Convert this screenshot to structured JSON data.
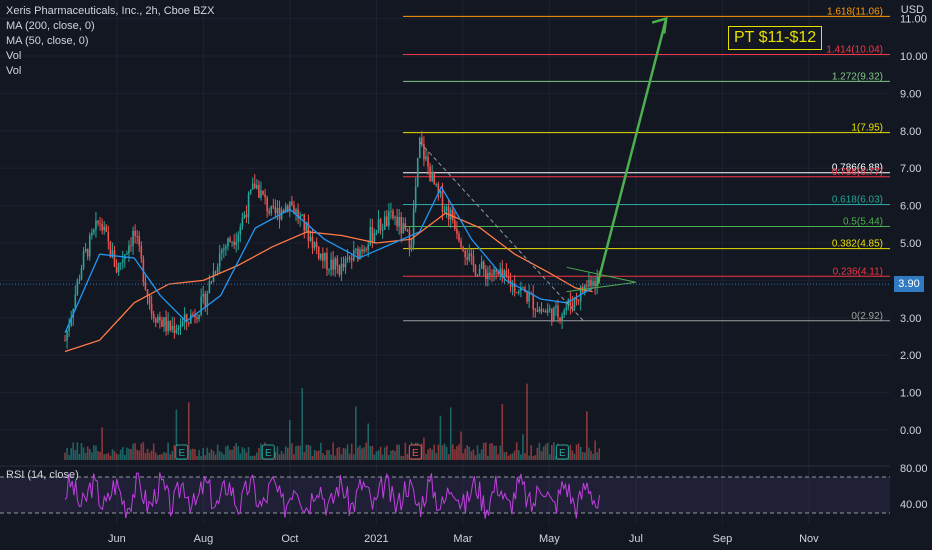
{
  "header": {
    "title": "Xeris Pharmaceuticals, Inc., 2h, Cboe BZX",
    "ma200": "MA (200, close, 0)",
    "ma50": "MA (50, close, 0)",
    "vol1": "Vol",
    "vol2": "Vol",
    "rsi": "RSI (14, close)",
    "currency": "USD"
  },
  "annotation": {
    "target_label": "PT $11-$12"
  },
  "current_price": "3.90",
  "colors": {
    "background": "#131722",
    "candle_up": "#26a69a",
    "candle_down": "#ef5350",
    "ma50": "#2196f3",
    "ma200": "#ff7a45",
    "arrow": "#4caf50",
    "rsi": "#c040e0"
  },
  "chart_data": {
    "type": "candlestick",
    "price_axis": {
      "ticks": [
        {
          "value": 11,
          "label": "11.00"
        },
        {
          "value": 10,
          "label": "10.00"
        },
        {
          "value": 9,
          "label": "9.00"
        },
        {
          "value": 8,
          "label": "8.00"
        },
        {
          "value": 7,
          "label": "7.00"
        },
        {
          "value": 6,
          "label": "6.00"
        },
        {
          "value": 5,
          "label": "5.00"
        },
        {
          "value": 4,
          "label": "4.00"
        },
        {
          "value": 3,
          "label": "3.00"
        },
        {
          "value": 2,
          "label": "2.00"
        },
        {
          "value": 1,
          "label": "1.00"
        },
        {
          "value": 0,
          "label": "0.00"
        }
      ]
    },
    "rsi_axis": {
      "ticks": [
        {
          "value": 80,
          "label": "80.00"
        },
        {
          "value": 40,
          "label": "40.00"
        }
      ]
    },
    "time_axis": {
      "labels": [
        {
          "t": 0.6,
          "label": "Jun"
        },
        {
          "t": 1.6,
          "label": "Aug"
        },
        {
          "t": 2.6,
          "label": "Oct"
        },
        {
          "t": 3.6,
          "label": "2021"
        },
        {
          "t": 4.6,
          "label": "Mar"
        },
        {
          "t": 5.6,
          "label": "May"
        },
        {
          "t": 6.6,
          "label": "Jul"
        },
        {
          "t": 7.6,
          "label": "Sep"
        },
        {
          "t": 8.6,
          "label": "Nov"
        }
      ]
    },
    "fib_levels": [
      {
        "ratio": "1.618",
        "value": 11.06,
        "label": "1.618(11.06)",
        "color": "#ff9800"
      },
      {
        "ratio": "1.414",
        "value": 10.04,
        "label": "1.414(10.04)",
        "color": "#f23645"
      },
      {
        "ratio": "1.272",
        "value": 9.32,
        "label": "1.272(9.32)",
        "color": "#81c784"
      },
      {
        "ratio": "1",
        "value": 7.95,
        "label": "1(7.95)",
        "color": "#e8e000"
      },
      {
        "ratio": "0.786",
        "value": 6.88,
        "label": "0.786(6.88)",
        "color": "#ffffff"
      },
      {
        "ratio": "0.786",
        "value": 6.77,
        "label": "0.786(6.77)",
        "color": "#f23645"
      },
      {
        "ratio": "0.618",
        "value": 6.03,
        "label": "0.618(6.03)",
        "color": "#26a69a"
      },
      {
        "ratio": "0.5",
        "value": 5.44,
        "label": "0.5(5.44)",
        "color": "#4caf50"
      },
      {
        "ratio": "0.382",
        "value": 4.85,
        "label": "0.382(4.85)",
        "color": "#e8e000"
      },
      {
        "ratio": "0.236",
        "value": 4.11,
        "label": "0.236(4.11)",
        "color": "#f23645"
      },
      {
        "ratio": "0",
        "value": 2.92,
        "label": "0(2.92)",
        "color": "#9e9e9e"
      }
    ],
    "price_path_sketch": [
      {
        "t": 0.0,
        "v": 2.4
      },
      {
        "t": 0.2,
        "v": 4.5
      },
      {
        "t": 0.4,
        "v": 5.6
      },
      {
        "t": 0.6,
        "v": 4.3
      },
      {
        "t": 0.8,
        "v": 5.3
      },
      {
        "t": 1.0,
        "v": 3.2
      },
      {
        "t": 1.2,
        "v": 2.7
      },
      {
        "t": 1.4,
        "v": 2.9
      },
      {
        "t": 1.6,
        "v": 3.4
      },
      {
        "t": 1.8,
        "v": 4.8
      },
      {
        "t": 2.0,
        "v": 5.3
      },
      {
        "t": 2.2,
        "v": 6.6
      },
      {
        "t": 2.4,
        "v": 5.7
      },
      {
        "t": 2.6,
        "v": 6.1
      },
      {
        "t": 2.8,
        "v": 5.3
      },
      {
        "t": 3.0,
        "v": 4.5
      },
      {
        "t": 3.2,
        "v": 4.3
      },
      {
        "t": 3.4,
        "v": 4.8
      },
      {
        "t": 3.6,
        "v": 5.4
      },
      {
        "t": 3.8,
        "v": 5.7
      },
      {
        "t": 4.0,
        "v": 5.0
      },
      {
        "t": 4.1,
        "v": 7.7
      },
      {
        "t": 4.3,
        "v": 6.3
      },
      {
        "t": 4.5,
        "v": 5.6
      },
      {
        "t": 4.7,
        "v": 4.4
      },
      {
        "t": 4.9,
        "v": 4.2
      },
      {
        "t": 5.1,
        "v": 4.0
      },
      {
        "t": 5.3,
        "v": 3.7
      },
      {
        "t": 5.5,
        "v": 3.2
      },
      {
        "t": 5.7,
        "v": 3.1
      },
      {
        "t": 5.9,
        "v": 3.5
      },
      {
        "t": 6.1,
        "v": 4.1
      },
      {
        "t": 6.2,
        "v": 3.9
      }
    ],
    "ma50": [
      {
        "t": 0.0,
        "v": 2.6
      },
      {
        "t": 0.4,
        "v": 4.7
      },
      {
        "t": 0.8,
        "v": 4.6
      },
      {
        "t": 1.1,
        "v": 3.6
      },
      {
        "t": 1.4,
        "v": 2.9
      },
      {
        "t": 1.8,
        "v": 3.6
      },
      {
        "t": 2.2,
        "v": 5.4
      },
      {
        "t": 2.6,
        "v": 5.9
      },
      {
        "t": 3.0,
        "v": 5.1
      },
      {
        "t": 3.4,
        "v": 4.6
      },
      {
        "t": 3.8,
        "v": 5.0
      },
      {
        "t": 4.1,
        "v": 5.3
      },
      {
        "t": 4.35,
        "v": 6.5
      },
      {
        "t": 4.7,
        "v": 5.1
      },
      {
        "t": 5.1,
        "v": 4.0
      },
      {
        "t": 5.5,
        "v": 3.5
      },
      {
        "t": 5.8,
        "v": 3.4
      },
      {
        "t": 6.1,
        "v": 3.8
      }
    ],
    "ma200": [
      {
        "t": 0.0,
        "v": 2.1
      },
      {
        "t": 0.4,
        "v": 2.4
      },
      {
        "t": 0.8,
        "v": 3.4
      },
      {
        "t": 1.2,
        "v": 3.9
      },
      {
        "t": 1.6,
        "v": 4.0
      },
      {
        "t": 2.0,
        "v": 4.4
      },
      {
        "t": 2.4,
        "v": 4.9
      },
      {
        "t": 2.8,
        "v": 5.3
      },
      {
        "t": 3.2,
        "v": 5.2
      },
      {
        "t": 3.6,
        "v": 5.0
      },
      {
        "t": 4.0,
        "v": 5.1
      },
      {
        "t": 4.4,
        "v": 5.8
      },
      {
        "t": 4.8,
        "v": 5.4
      },
      {
        "t": 5.2,
        "v": 4.7
      },
      {
        "t": 5.6,
        "v": 4.2
      },
      {
        "t": 5.9,
        "v": 3.8
      },
      {
        "t": 6.1,
        "v": 3.7
      }
    ],
    "earnings_markers": [
      {
        "t": 1.35,
        "label": "E",
        "color": "#26a69a"
      },
      {
        "t": 2.35,
        "label": "E",
        "color": "#26a69a"
      },
      {
        "t": 4.05,
        "label": "E",
        "color": "#ef5350"
      },
      {
        "t": 5.75,
        "label": "E",
        "color": "#26a69a"
      }
    ],
    "projection_arrow": {
      "from": {
        "t": 6.15,
        "v": 3.85
      },
      "to": {
        "t": 6.95,
        "v": 11.0
      }
    },
    "rsi_bounds": {
      "upper": 70,
      "lower": 30
    }
  }
}
